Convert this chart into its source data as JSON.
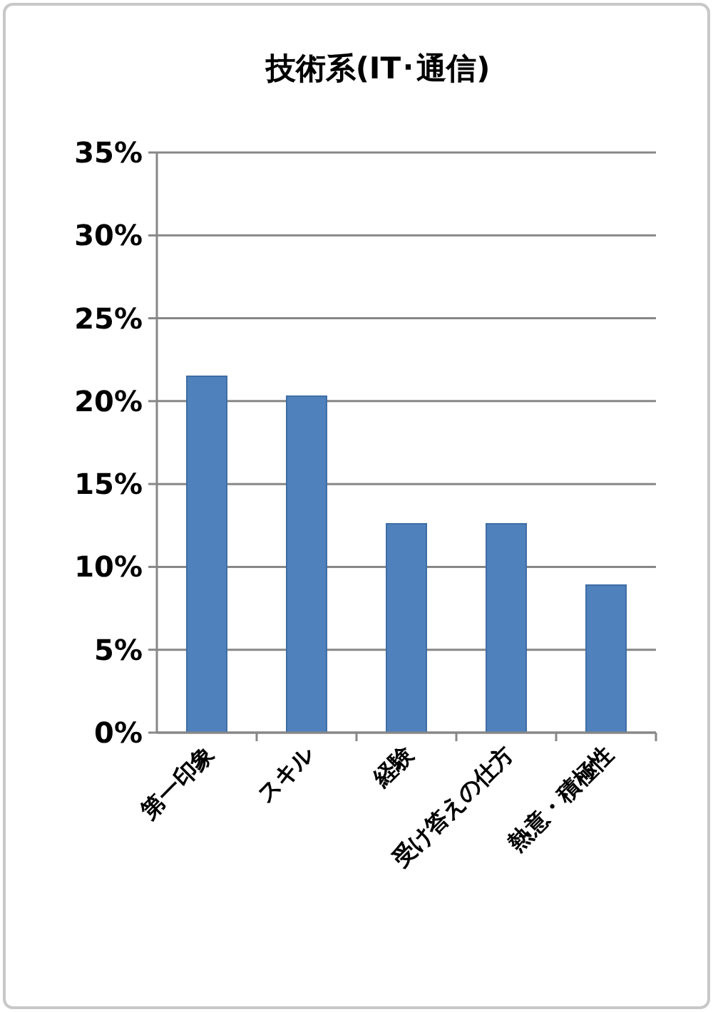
{
  "chart_data": {
    "type": "bar",
    "title": "技術系(IT･通信)",
    "categories": [
      "第一印象",
      "スキル",
      "経験",
      "受け答えの仕方",
      "熱意・積極性"
    ],
    "values": [
      21.5,
      20.3,
      12.6,
      12.6,
      8.9
    ],
    "color": "#4f81bd",
    "ylim": [
      0,
      35
    ],
    "yticks": [
      {
        "value": 0,
        "label": "0%"
      },
      {
        "value": 5,
        "label": "5%"
      },
      {
        "value": 10,
        "label": "10%"
      },
      {
        "value": 15,
        "label": "15%"
      },
      {
        "value": 20,
        "label": "20%"
      },
      {
        "value": 25,
        "label": "25%"
      },
      {
        "value": 30,
        "label": "30%"
      },
      {
        "value": 35,
        "label": "35%"
      }
    ],
    "grid": "y"
  }
}
